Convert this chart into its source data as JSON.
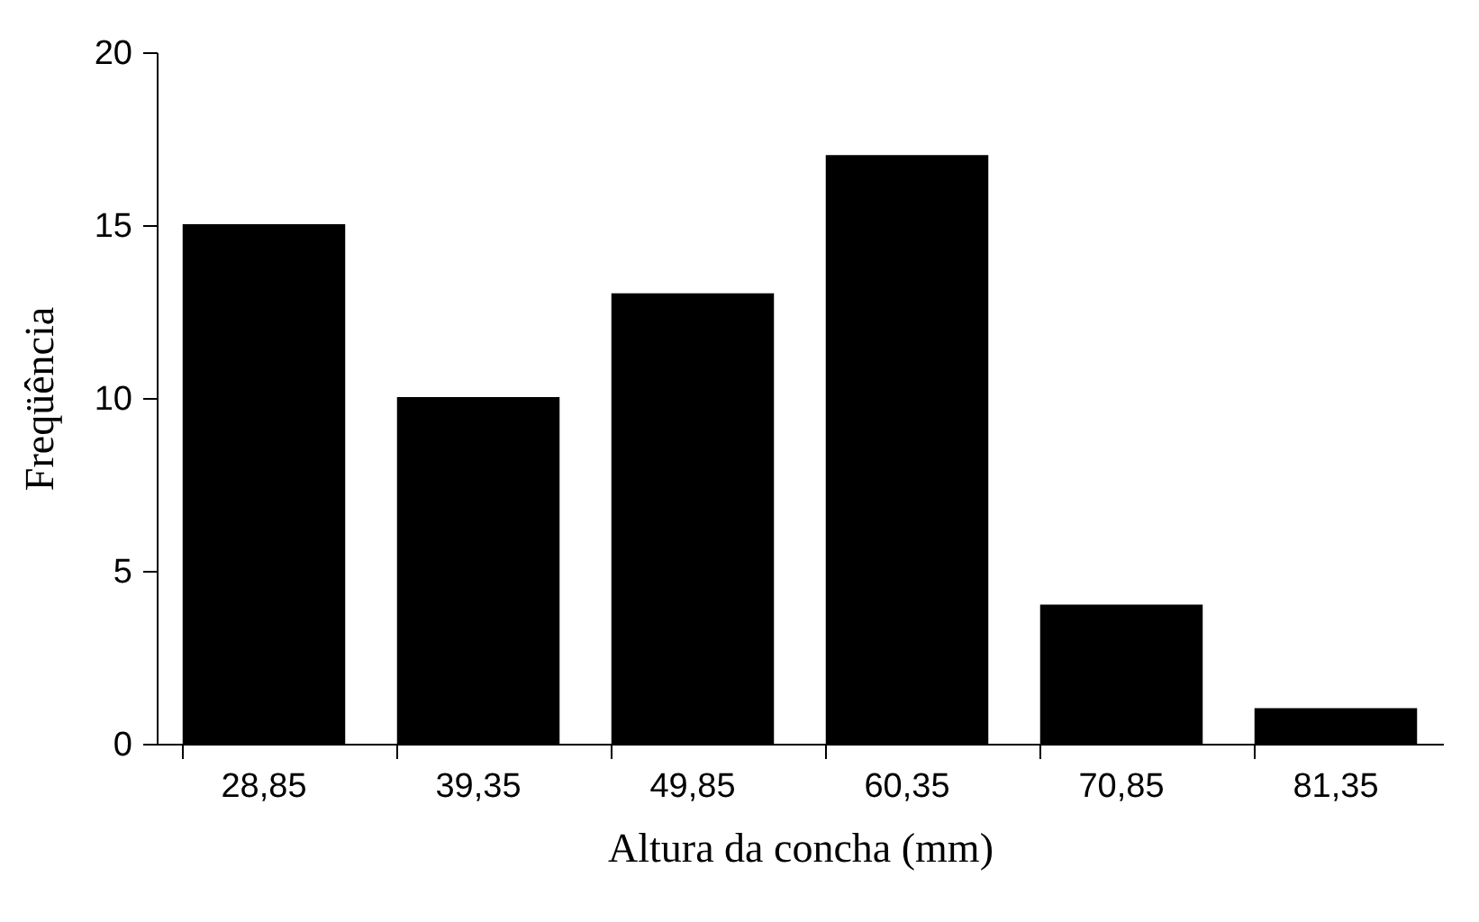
{
  "chart_data": {
    "type": "bar",
    "xlabel": "Altura da concha (mm)",
    "ylabel": "Freqüência",
    "categories": [
      "28,85",
      "39,35",
      "49,85",
      "60,35",
      "70,85",
      "81,35"
    ],
    "values": [
      15,
      10,
      13,
      17,
      4,
      1
    ],
    "color": "#000000",
    "ylim": [
      0,
      20
    ],
    "yticks": [
      0,
      5,
      10,
      15,
      20
    ],
    "grid": false
  }
}
